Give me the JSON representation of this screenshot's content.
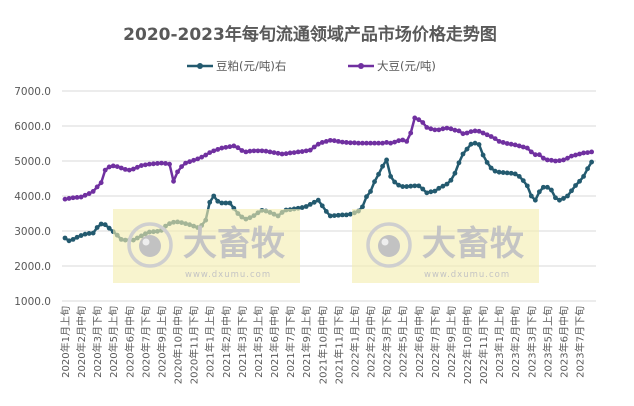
{
  "chart_data": {
    "type": "line",
    "title": "2020-2023年每旬流通领域产品市场价格走势图",
    "ylim": [
      1000,
      7000
    ],
    "yticks": [
      "1000.0",
      "2000.0",
      "3000.0",
      "4000.0",
      "5000.0",
      "6000.0",
      "7000.0"
    ],
    "grid": true,
    "legend_position": "top",
    "x_tick_labels": [
      "2020年1月上旬",
      "2020年2月中旬",
      "2020年3月下旬",
      "2020年5月上旬",
      "2020年6月中旬",
      "2020年7月下旬",
      "2020年9月上旬",
      "2020年10月中旬",
      "2020年11月下旬",
      "2021年1月上旬",
      "2021年2月中旬",
      "2021年3月下旬",
      "2021年5月上旬",
      "2021年6月中旬",
      "2021年7月下旬",
      "2021年9月上旬",
      "2021年10月中旬",
      "2021年11月下旬",
      "2022年1月上旬",
      "2022年2月中旬",
      "2022年3月下旬",
      "2022年5月上旬",
      "2022年6月中旬",
      "2022年7月下旬",
      "2022年9月上旬",
      "2022年10月中旬",
      "2022年11月下旬",
      "2023年1月上旬",
      "2023年2月中旬",
      "2023年3月下旬",
      "2023年5月上旬",
      "2023年6月中旬",
      "2023年7月下旬"
    ],
    "x_tick_every": 4,
    "series": [
      {
        "name": "豆粕(元/吨)右",
        "color": "#235a6f",
        "values": [
          2800,
          2720,
          2760,
          2820,
          2870,
          2910,
          2930,
          2940,
          3100,
          3200,
          3180,
          3080,
          2980,
          2880,
          2760,
          2740,
          2740,
          2740,
          2800,
          2860,
          2920,
          2970,
          2980,
          2990,
          3020,
          3140,
          3210,
          3250,
          3260,
          3240,
          3210,
          3180,
          3140,
          3100,
          3160,
          3310,
          3820,
          4000,
          3850,
          3800,
          3800,
          3800,
          3650,
          3500,
          3400,
          3340,
          3380,
          3440,
          3520,
          3590,
          3570,
          3530,
          3480,
          3430,
          3530,
          3600,
          3610,
          3630,
          3650,
          3670,
          3700,
          3760,
          3820,
          3880,
          3720,
          3560,
          3430,
          3440,
          3450,
          3460,
          3460,
          3480,
          3520,
          3570,
          3690,
          3980,
          4130,
          4410,
          4620,
          4850,
          5030,
          4560,
          4400,
          4310,
          4270,
          4270,
          4280,
          4290,
          4290,
          4200,
          4090,
          4120,
          4140,
          4220,
          4280,
          4340,
          4450,
          4650,
          4950,
          5200,
          5340,
          5480,
          5510,
          5470,
          5170,
          4960,
          4800,
          4710,
          4680,
          4670,
          4660,
          4650,
          4630,
          4560,
          4440,
          4290,
          4000,
          3880,
          4120,
          4250,
          4250,
          4170,
          3950,
          3880,
          3930,
          4000,
          4150,
          4300,
          4420,
          4560,
          4780,
          4970
        ]
      },
      {
        "name": "大豆(元/吨)",
        "color": "#7030a0",
        "values": [
          3910,
          3930,
          3950,
          3960,
          3970,
          4020,
          4070,
          4130,
          4260,
          4380,
          4740,
          4830,
          4860,
          4840,
          4800,
          4760,
          4740,
          4770,
          4820,
          4870,
          4890,
          4910,
          4920,
          4930,
          4940,
          4930,
          4910,
          4420,
          4690,
          4840,
          4940,
          4980,
          5020,
          5060,
          5110,
          5170,
          5240,
          5290,
          5330,
          5370,
          5390,
          5410,
          5430,
          5380,
          5300,
          5260,
          5280,
          5290,
          5290,
          5290,
          5280,
          5260,
          5240,
          5220,
          5200,
          5210,
          5230,
          5240,
          5260,
          5270,
          5290,
          5310,
          5400,
          5480,
          5530,
          5560,
          5590,
          5580,
          5560,
          5540,
          5530,
          5520,
          5520,
          5510,
          5510,
          5510,
          5510,
          5510,
          5510,
          5510,
          5530,
          5510,
          5540,
          5580,
          5600,
          5560,
          5800,
          6230,
          6180,
          6100,
          5960,
          5920,
          5890,
          5890,
          5920,
          5940,
          5920,
          5880,
          5860,
          5780,
          5800,
          5840,
          5860,
          5850,
          5800,
          5750,
          5700,
          5640,
          5560,
          5530,
          5500,
          5480,
          5460,
          5430,
          5400,
          5370,
          5260,
          5180,
          5180,
          5080,
          5030,
          5020,
          5000,
          5010,
          5030,
          5080,
          5140,
          5170,
          5200,
          5230,
          5240,
          5260
        ]
      }
    ],
    "gridline_color": "#d9d9d9",
    "watermark": {
      "text": "大畜牧",
      "url": "www.dxumu.com",
      "box_color": "#f3eeb0"
    }
  }
}
